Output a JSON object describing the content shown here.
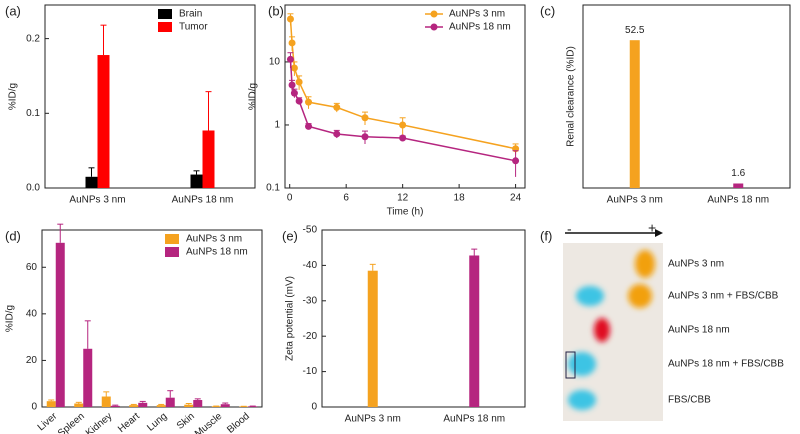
{
  "chart_data": [
    {
      "type": "bar",
      "panel_label": "(a)",
      "ylabel": "%ID/g",
      "categories": [
        "AuNPs 3 nm",
        "AuNPs 18 nm"
      ],
      "series": [
        {
          "name": "Brain",
          "color": "#000000",
          "values": [
            0.015,
            0.018
          ],
          "errors": [
            0.012,
            0.005
          ]
        },
        {
          "name": "Tumor",
          "color": "#ff0000",
          "values": [
            0.178,
            0.077
          ],
          "errors": [
            0.04,
            0.052
          ]
        }
      ],
      "ylim": [
        0,
        0.245
      ],
      "yticks": [
        {
          "value": 0,
          "label": "0.0"
        },
        0.1,
        0.2
      ],
      "legend": "upper right"
    },
    {
      "type": "line",
      "panel_label": "(b)",
      "xlabel": "Time (h)",
      "ylabel": "%ID/g",
      "x": [
        0.08,
        0.25,
        0.5,
        1,
        2,
        5,
        8,
        12,
        24
      ],
      "series": [
        {
          "name": "AuNPs 3 nm",
          "color": "#f5a21f",
          "values": [
            48,
            20,
            8,
            4.8,
            2.3,
            1.9,
            1.3,
            1.0,
            0.42
          ],
          "errors": [
            10,
            5,
            2,
            1.2,
            0.5,
            0.3,
            0.3,
            0.3,
            0.08
          ]
        },
        {
          "name": "AuNPs 18 nm",
          "color": "#b5257f",
          "values": [
            11,
            4.3,
            3.2,
            2.4,
            0.95,
            0.72,
            0.65,
            0.62,
            0.27
          ],
          "errors": [
            3,
            0.8,
            0.5,
            0.3,
            0.1,
            0.1,
            0.15,
            0.05,
            0.12
          ]
        }
      ],
      "xlim": [
        -0.5,
        25
      ],
      "xticks": [
        0,
        6,
        12,
        18,
        24
      ],
      "ylim": [
        0.1,
        80
      ],
      "yticks": [
        0.1,
        1,
        10
      ],
      "log_y": true,
      "legend": "upper right"
    },
    {
      "type": "bar",
      "panel_label": "(c)",
      "ylabel": "Renal clearance (%ID)",
      "categories": [
        "AuNPs 3 nm",
        "AuNPs 18 nm"
      ],
      "values": [
        52.5,
        1.6
      ],
      "colors": [
        "#f5a21f",
        "#b5257f"
      ],
      "ylim": [
        0,
        65
      ],
      "show_values": true
    },
    {
      "type": "bar",
      "panel_label": "(d)",
      "ylabel": "%ID/g",
      "categories": [
        "Liver",
        "Spleen",
        "Kidney",
        "Heart",
        "Lung",
        "Skin",
        "Muscle",
        "Blood"
      ],
      "series": [
        {
          "name": "AuNPs 3 nm",
          "color": "#f5a21f",
          "values": [
            2.5,
            1.5,
            4.5,
            0.8,
            0.8,
            1,
            0.3,
            0.2
          ],
          "errors": [
            0.5,
            0.5,
            2,
            0.3,
            0.3,
            0.5,
            0.1,
            0.1
          ]
        },
        {
          "name": "AuNPs 18 nm",
          "color": "#b5257f",
          "values": [
            70.5,
            25,
            0.5,
            1.8,
            4,
            3,
            1.2,
            0.3
          ],
          "errors": [
            8,
            12,
            0.3,
            0.6,
            3,
            0.5,
            0.5,
            0.1
          ]
        }
      ],
      "ylim": [
        0,
        76
      ],
      "yticks": [
        0,
        20,
        40,
        60
      ],
      "legend": "upper right"
    },
    {
      "type": "bar",
      "panel_label": "(e)",
      "ylabel": "Zeta potential (mV)",
      "categories": [
        "AuNPs 3 nm",
        "AuNPs 18 nm"
      ],
      "values": [
        -38.5,
        -42.8
      ],
      "errors": [
        1.8,
        1.8
      ],
      "colors": [
        "#f5a21f",
        "#b5257f"
      ],
      "ylim": [
        0,
        -50
      ],
      "yticks": [
        0,
        -10,
        -20,
        -30,
        -40,
        -50
      ]
    }
  ],
  "gel": {
    "panel_label": "(f)",
    "polarity": [
      "-",
      "+"
    ],
    "lanes": [
      "AuNPs 3 nm",
      "AuNPs 3 nm + FBS/CBB",
      "AuNPs 18 nm",
      "AuNPs 18 nm + FBS/CBB",
      "FBS/CBB"
    ]
  }
}
